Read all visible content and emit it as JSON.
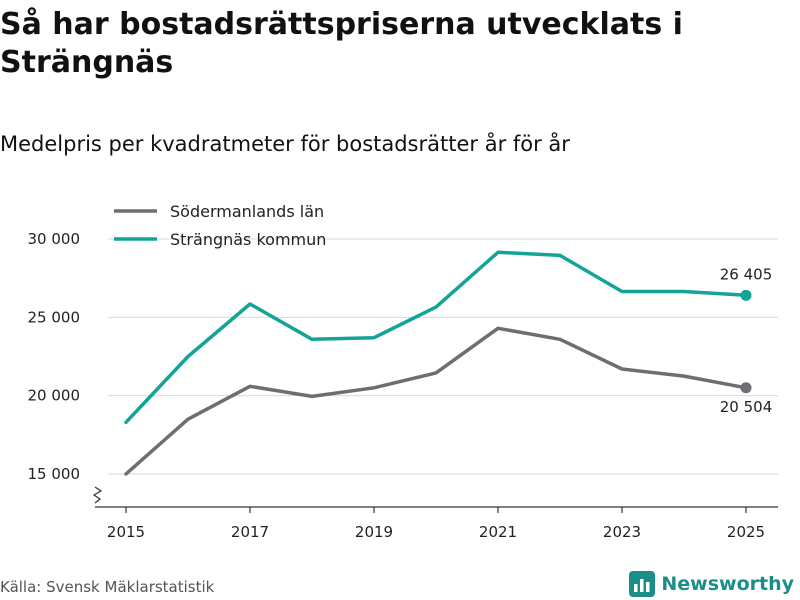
{
  "header": {
    "title": "Så har bostadsrättspriserna utvecklats i Strängnäs",
    "subtitle": "Medelpris per kvadratmeter för bostadsrätter år för år"
  },
  "footer": {
    "source": "Källa: Svensk Mäklarstatistik",
    "brand": "Newsworthy"
  },
  "chart_data": {
    "type": "line",
    "title": "Så har bostadsrättspriserna utvecklats i Strängnäs",
    "subtitle": "Medelpris per kvadratmeter för bostadsrätter år för år",
    "xlabel": "",
    "ylabel": "",
    "x": [
      2015,
      2016,
      2017,
      2018,
      2019,
      2020,
      2021,
      2022,
      2023,
      2024,
      2025
    ],
    "x_ticks": [
      2015,
      2017,
      2019,
      2021,
      2023,
      2025
    ],
    "x_tick_labels": [
      "2015",
      "2017",
      "2019",
      "2021",
      "2023",
      "2025"
    ],
    "ylim": [
      13000,
      31000
    ],
    "y_ticks": [
      15000,
      20000,
      25000,
      30000
    ],
    "y_tick_labels": [
      "15 000",
      "20 000",
      "25 000",
      "30 000"
    ],
    "grid": true,
    "legend_position": "top-left",
    "series": [
      {
        "name": "Södermanlands län",
        "color": "#6e6d74",
        "values": [
          15000,
          18500,
          20600,
          19950,
          20500,
          21450,
          24300,
          23600,
          21700,
          21250,
          20504
        ],
        "end_label": "20 504",
        "end_label_position": "below"
      },
      {
        "name": "Strängnäs kommun",
        "color": "#14a398",
        "values": [
          18300,
          22500,
          25850,
          23600,
          23700,
          25650,
          29150,
          28950,
          26650,
          26650,
          26405
        ],
        "end_label": "26 405",
        "end_label_position": "above"
      }
    ]
  }
}
